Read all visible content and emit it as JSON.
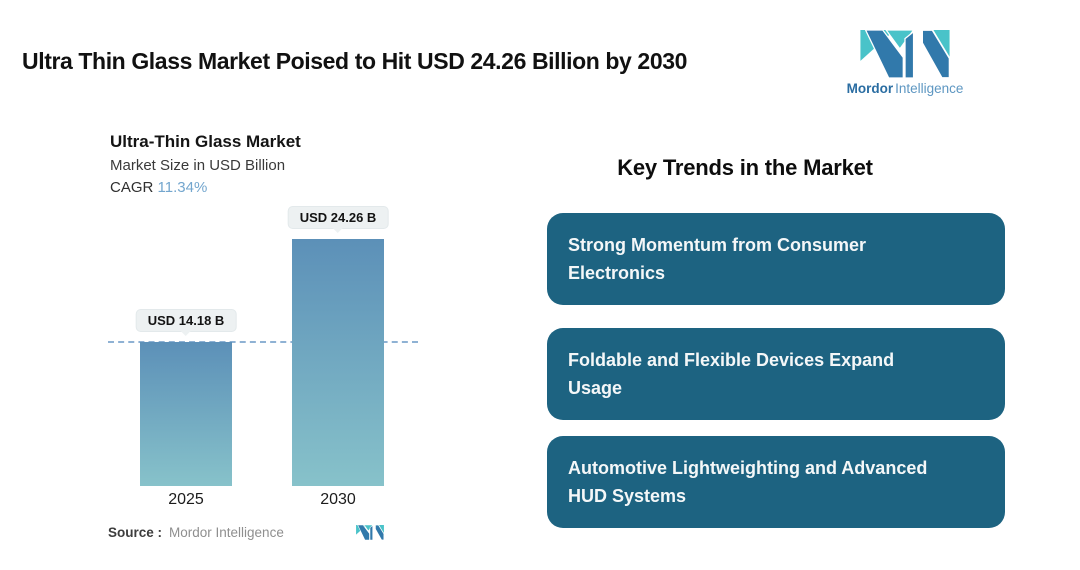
{
  "header": {
    "title": "Ultra Thin Glass Market Poised to Hit USD 24.26 Billion by 2030",
    "brand": {
      "bold": "Mordor",
      "regular": "Intelligence"
    }
  },
  "chart": {
    "title": "Ultra-Thin Glass Market",
    "subtitle": "Market Size in USD Billion",
    "cagr_label": "CAGR",
    "cagr_value": "11.34%",
    "source_label": "Source :",
    "source_value": "Mordor Intelligence"
  },
  "chart_data": {
    "type": "bar",
    "title": "Ultra-Thin Glass Market",
    "subtitle": "Market Size in USD Billion",
    "unit": "USD Billion",
    "cagr_percent": 11.34,
    "categories": [
      "2025",
      "2030"
    ],
    "values": [
      14.18,
      24.26
    ],
    "bar_labels": [
      "USD 14.18 B",
      "USD 24.26 B"
    ],
    "reference_line_value": 14.18,
    "ylim": [
      0,
      26
    ],
    "grid": false,
    "legend": false,
    "bar_gradient": [
      "#5C90B8",
      "#87C2CA"
    ]
  },
  "trends": {
    "heading": "Key Trends in the Market",
    "card_color": "#1D6381",
    "cards": [
      {
        "label": "Strong Momentum from Consumer\nElectronics"
      },
      {
        "label": "Foldable and Flexible Devices Expand\nUsage"
      },
      {
        "label": "Automotive Lightweighting and Advanced\nHUD Systems"
      }
    ]
  },
  "colors": {
    "background": "#FFFFFF",
    "title_text": "#111111",
    "accent_blue": "#3179AB",
    "accent_teal": "#49C3C9",
    "cagr_value_blue": "#73A6CE",
    "dashed_line": "#8FB2D4",
    "value_pill_bg": "#EDF1F2",
    "card_bg": "#1D6381",
    "card_text": "#F4F7F8",
    "source_text": "#8F8F8F"
  }
}
